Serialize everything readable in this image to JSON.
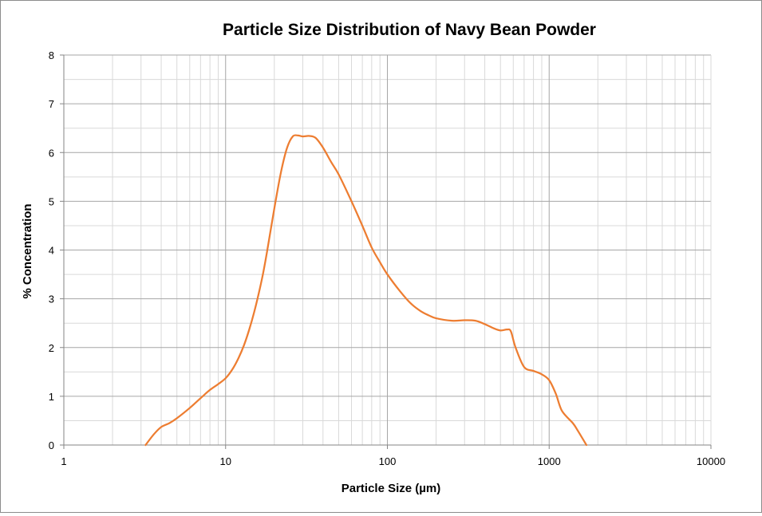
{
  "chart_data": {
    "type": "line",
    "title": "Particle Size Distribution of Navy Bean Powder",
    "xlabel": "Particle Size (µm)",
    "ylabel": "% Concentration",
    "x_scale": "log",
    "xlim": [
      1,
      10000
    ],
    "ylim": [
      0,
      8
    ],
    "x_ticks": [
      "1",
      "10",
      "100",
      "1000",
      "10000"
    ],
    "y_ticks": [
      "0",
      "1",
      "2",
      "3",
      "4",
      "5",
      "6",
      "7",
      "8"
    ],
    "grid": true,
    "legend": "none",
    "series": [
      {
        "color": "#ED7D31",
        "x": [
          3.2,
          3.6,
          4.0,
          4.5,
          5.0,
          6.0,
          7.0,
          8.0,
          9.0,
          10,
          11,
          12,
          13,
          14,
          15,
          16,
          17,
          18,
          20,
          22,
          24,
          26,
          28,
          30,
          33,
          36,
          40,
          45,
          50,
          60,
          70,
          80,
          90,
          100,
          120,
          140,
          160,
          180,
          200,
          250,
          300,
          350,
          400,
          450,
          500,
          550,
          580,
          620,
          700,
          800,
          900,
          1000,
          1100,
          1200,
          1400,
          1500,
          1700
        ],
        "y": [
          0.0,
          0.22,
          0.37,
          0.45,
          0.55,
          0.76,
          0.96,
          1.13,
          1.25,
          1.37,
          1.55,
          1.78,
          2.05,
          2.37,
          2.72,
          3.1,
          3.5,
          3.95,
          4.85,
          5.6,
          6.1,
          6.33,
          6.35,
          6.33,
          6.34,
          6.3,
          6.1,
          5.8,
          5.55,
          5.0,
          4.5,
          4.05,
          3.75,
          3.5,
          3.15,
          2.9,
          2.75,
          2.66,
          2.6,
          2.55,
          2.56,
          2.55,
          2.48,
          2.4,
          2.35,
          2.37,
          2.33,
          2.0,
          1.6,
          1.52,
          1.45,
          1.33,
          1.05,
          0.7,
          0.45,
          0.3,
          0.0
        ]
      }
    ]
  }
}
